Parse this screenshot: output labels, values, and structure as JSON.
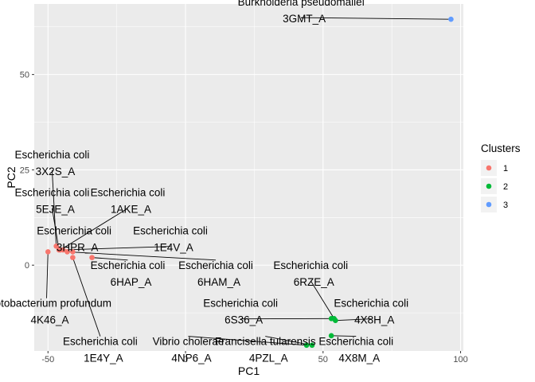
{
  "chart_data": {
    "type": "scatter",
    "xlabel": "PC1",
    "ylabel": "PC2",
    "xlim": [
      -55,
      101
    ],
    "ylim": [
      -22.5,
      68.5
    ],
    "x_ticks": [
      -50,
      0,
      50,
      100
    ],
    "y_ticks": [
      0,
      25,
      50
    ],
    "grid": true,
    "legend": {
      "title": "Clusters",
      "position": "right",
      "entries": [
        {
          "label": "1",
          "color": "#F8766D"
        },
        {
          "label": "2",
          "color": "#00BA38"
        },
        {
          "label": "3",
          "color": "#619CFF"
        }
      ]
    },
    "points": [
      {
        "x": -47,
        "y": 5,
        "cluster": "1",
        "species": "Escherichia coli",
        "id": "3X2S_A",
        "lx": -48.5,
        "ly": 27
      },
      {
        "x": -46,
        "y": 4,
        "cluster": "1",
        "species": "Escherichia coli",
        "id": "5EJE_A",
        "lx": -48.5,
        "ly": 17
      },
      {
        "x": -45.5,
        "y": 4,
        "cluster": "1",
        "species": "Escherichia coli",
        "id": "1AKE_A",
        "lx": -21,
        "ly": 17
      },
      {
        "x": -41,
        "y": 3.5,
        "cluster": "1",
        "species": "Escherichia coli",
        "id": "3HPR_A",
        "lx": -40.5,
        "ly": 7
      },
      {
        "x": -44.5,
        "y": 4,
        "cluster": "1",
        "species": "Escherichia coli",
        "id": "1E4V_A",
        "lx": -5.5,
        "ly": 7
      },
      {
        "x": -34,
        "y": 2,
        "cluster": "1",
        "species": "Escherichia coli",
        "id": "6HAP_A",
        "lx": -21,
        "ly": -2
      },
      {
        "x": -43,
        "y": 3.5,
        "cluster": "1",
        "species": "Escherichia coli",
        "id": "6HAM_A",
        "lx": 11,
        "ly": -2
      },
      {
        "x": -50,
        "y": 3.5,
        "cluster": "1",
        "species": "Photobacterium profundum",
        "id": "4K46_A",
        "lx": -50.5,
        "ly": -12
      },
      {
        "x": -41,
        "y": 2,
        "cluster": "1",
        "species": "Escherichia coli",
        "id": "1E4Y_A",
        "lx": -31,
        "ly": -22
      },
      {
        "x": 54,
        "y": -14,
        "cluster": "2",
        "species": "Escherichia coli",
        "id": "6RZE_A",
        "lx": 45.5,
        "ly": -2
      },
      {
        "x": 53,
        "y": -14,
        "cluster": "2",
        "species": "Escherichia coli",
        "id": "6S36_A",
        "lx": 20,
        "ly": -12
      },
      {
        "x": 54.5,
        "y": -14.5,
        "cluster": "2",
        "species": "Escherichia coli",
        "id": "4X8H_A",
        "lx": 67.5,
        "ly": -12
      },
      {
        "x": 44,
        "y": -21,
        "cluster": "2",
        "species": "Vibrio cholerae",
        "id": "4NP6_A",
        "lx": 1,
        "ly": -22
      },
      {
        "x": 46,
        "y": -21,
        "cluster": "2",
        "species": "Francisella tularensis",
        "id": "4PZL_A",
        "lx": 29,
        "ly": -22
      },
      {
        "x": 53,
        "y": -18.5,
        "cluster": "2",
        "species": "Escherichia coli",
        "id": "4X8M_A",
        "lx": 62,
        "ly": -22
      },
      {
        "x": 96.5,
        "y": 64.5,
        "cluster": "3",
        "species": "Burkholderia pseudomallei",
        "id": "3GMT_A",
        "lx": 42,
        "ly": 67
      }
    ]
  }
}
